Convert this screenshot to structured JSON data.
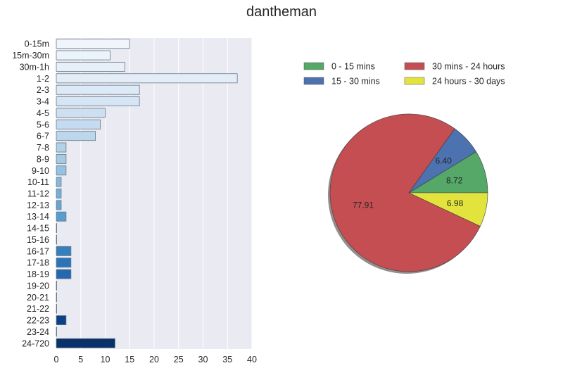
{
  "figure": {
    "title": "dantheman"
  },
  "chart_data": [
    {
      "type": "bar",
      "orientation": "horizontal",
      "title": "",
      "xlabel": "",
      "ylabel": "",
      "xlim": [
        0,
        40
      ],
      "xticks": [
        0,
        5,
        10,
        15,
        20,
        25,
        30,
        35,
        40
      ],
      "grid": true,
      "background": "#EAEAF2",
      "categories": [
        "0-15m",
        "15m-30m",
        "30m-1h",
        "1-2",
        "2-3",
        "3-4",
        "4-5",
        "5-6",
        "6-7",
        "7-8",
        "8-9",
        "9-10",
        "10-11",
        "11-12",
        "12-13",
        "13-14",
        "14-15",
        "15-16",
        "16-17",
        "17-18",
        "18-19",
        "19-20",
        "20-21",
        "21-22",
        "22-23",
        "23-24",
        "24-720"
      ],
      "values": [
        15,
        11,
        14,
        37,
        17,
        17,
        10,
        9,
        8,
        2,
        2,
        2,
        1,
        1,
        1,
        2,
        0,
        0,
        3,
        3,
        3,
        0,
        0,
        0,
        2,
        0,
        12
      ],
      "colors": [
        "#F0F5FB",
        "#EBF3FB",
        "#E7F0F9",
        "#E2EDF8",
        "#DCE9F6",
        "#D6E5F4",
        "#CCE0F2",
        "#C5DBEF",
        "#BCD7EB",
        "#B0D2E7",
        "#A3CBE3",
        "#95C3DF",
        "#86BADC",
        "#74B0D8",
        "#64A7D3",
        "#579DCE",
        "#4A93C8",
        "#3F89C2",
        "#357FBD",
        "#2D74B7",
        "#2469AF",
        "#1E5FA6",
        "#17559C",
        "#104B91",
        "#0C4186",
        "#08387B",
        "#0A326A"
      ]
    },
    {
      "type": "pie",
      "shadow": true,
      "legend_location": "top",
      "labels": [
        "0 - 15 mins",
        "15 - 30 mins",
        "30 mins - 24 hours",
        "24 hours - 30 days"
      ],
      "values": [
        8.72,
        6.4,
        77.91,
        6.98
      ],
      "value_labels": [
        "8.72",
        "6.40",
        "77.91",
        "6.98"
      ],
      "colors": [
        "#55A868",
        "#4C72B0",
        "#C44E52",
        "#E2E43D"
      ]
    }
  ]
}
